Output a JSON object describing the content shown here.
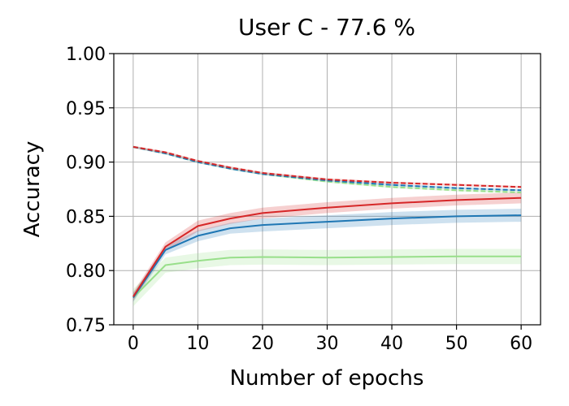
{
  "chart_data": {
    "type": "line",
    "title": "User C - 77.6 %",
    "xlabel": "Number of epochs",
    "ylabel": "Accuracy",
    "xlim": [
      -3,
      63
    ],
    "ylim": [
      0.75,
      1.0
    ],
    "xticks": [
      0,
      10,
      20,
      30,
      40,
      50,
      60
    ],
    "yticks": [
      0.75,
      0.8,
      0.85,
      0.9,
      0.95,
      1.0
    ],
    "xtick_labels": [
      "0",
      "10",
      "20",
      "30",
      "40",
      "50",
      "60"
    ],
    "ytick_labels": [
      "0.75",
      "0.80",
      "0.85",
      "0.90",
      "0.95",
      "1.00"
    ],
    "grid": true,
    "series": [
      {
        "color": "#98df8a",
        "style": "solid",
        "x": [
          0,
          5,
          10,
          15,
          20,
          30,
          40,
          50,
          60
        ],
        "y": [
          0.775,
          0.805,
          0.809,
          0.812,
          0.8125,
          0.812,
          0.8125,
          0.813,
          0.813
        ],
        "band": [
          0.008,
          0.007,
          0.007,
          0.007,
          0.007,
          0.007,
          0.007,
          0.007,
          0.007
        ]
      },
      {
        "color": "#1f77b4",
        "style": "solid",
        "x": [
          0,
          5,
          10,
          15,
          20,
          30,
          40,
          50,
          60
        ],
        "y": [
          0.775,
          0.819,
          0.832,
          0.839,
          0.842,
          0.845,
          0.848,
          0.85,
          0.851
        ],
        "band": [
          0.004,
          0.004,
          0.005,
          0.005,
          0.006,
          0.006,
          0.006,
          0.006,
          0.006
        ]
      },
      {
        "color": "#d62728",
        "style": "solid",
        "x": [
          0,
          5,
          10,
          15,
          20,
          30,
          40,
          50,
          60
        ],
        "y": [
          0.776,
          0.822,
          0.841,
          0.848,
          0.853,
          0.858,
          0.862,
          0.865,
          0.867
        ],
        "band": [
          0.004,
          0.004,
          0.005,
          0.005,
          0.005,
          0.005,
          0.005,
          0.005,
          0.005
        ]
      },
      {
        "color": "#98df8a",
        "style": "dashed",
        "x": [
          0,
          5,
          10,
          15,
          20,
          30,
          40,
          50,
          60
        ],
        "y": [
          0.914,
          0.908,
          0.9,
          0.894,
          0.889,
          0.882,
          0.877,
          0.874,
          0.872
        ],
        "band": [
          0.001,
          0.001,
          0.001,
          0.001,
          0.001,
          0.001,
          0.001,
          0.001,
          0.001
        ]
      },
      {
        "color": "#1f77b4",
        "style": "dashed",
        "x": [
          0,
          5,
          10,
          15,
          20,
          30,
          40,
          50,
          60
        ],
        "y": [
          0.914,
          0.908,
          0.9,
          0.894,
          0.889,
          0.883,
          0.879,
          0.876,
          0.874
        ],
        "band": [
          0.001,
          0.001,
          0.001,
          0.001,
          0.001,
          0.001,
          0.001,
          0.001,
          0.001
        ]
      },
      {
        "color": "#d62728",
        "style": "dashed",
        "x": [
          0,
          5,
          10,
          15,
          20,
          30,
          40,
          50,
          60
        ],
        "y": [
          0.914,
          0.909,
          0.901,
          0.895,
          0.89,
          0.884,
          0.881,
          0.879,
          0.877
        ],
        "band": [
          0.001,
          0.001,
          0.001,
          0.001,
          0.001,
          0.001,
          0.001,
          0.001,
          0.001
        ]
      }
    ]
  }
}
